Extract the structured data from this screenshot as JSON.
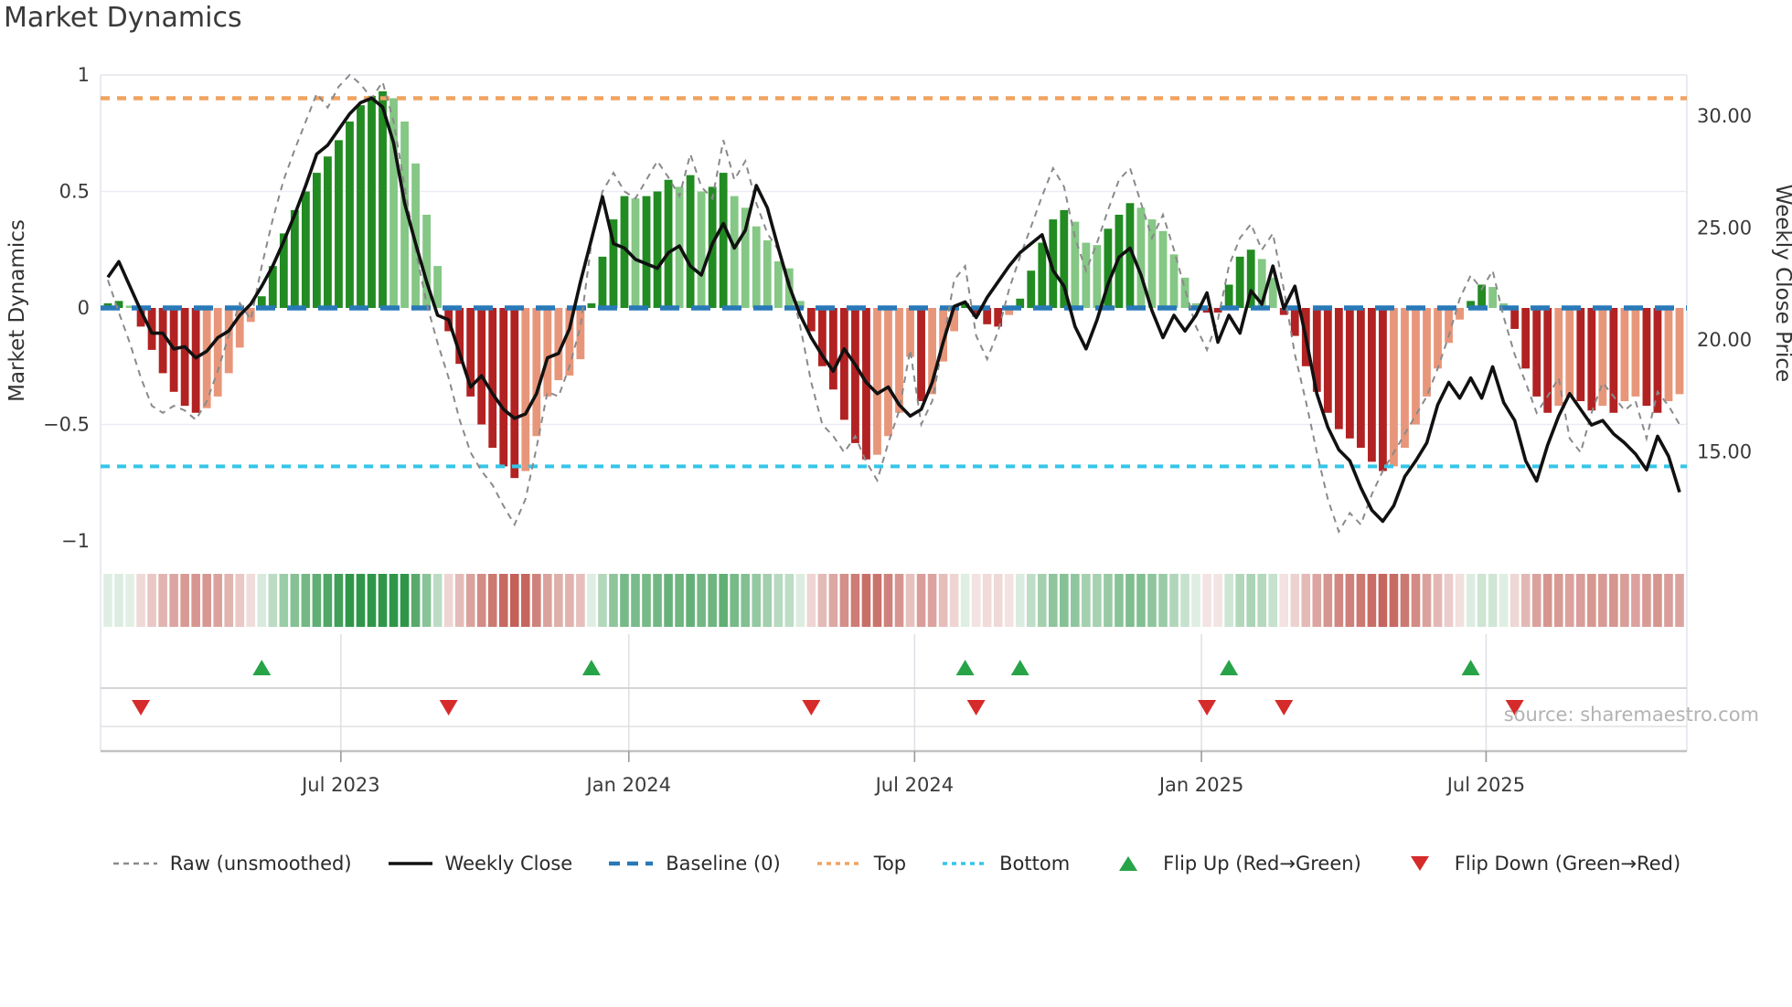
{
  "title": "Market Dynamics",
  "source": "source: sharemaestro.com",
  "axes": {
    "left_label": "Market Dynamics",
    "right_label": "Weekly Close Price",
    "left_ticks": [
      {
        "v": 1,
        "label": "1"
      },
      {
        "v": 0.5,
        "label": "0.5"
      },
      {
        "v": 0,
        "label": "0"
      },
      {
        "v": -0.5,
        "label": "−0.5"
      },
      {
        "v": -1,
        "label": "−1"
      }
    ],
    "right_ticks": [
      {
        "v": 30,
        "label": "30.00"
      },
      {
        "v": 25,
        "label": "25.00"
      },
      {
        "v": 20,
        "label": "20.00"
      },
      {
        "v": 15,
        "label": "15.00"
      }
    ],
    "x_ticks": [
      {
        "week": 21.2,
        "label": "Jul 2023"
      },
      {
        "week": 47.4,
        "label": "Jan 2024"
      },
      {
        "week": 73.4,
        "label": "Jul 2024"
      },
      {
        "week": 99.5,
        "label": "Jan 2025"
      },
      {
        "week": 125.4,
        "label": "Jul 2025"
      }
    ]
  },
  "legend": [
    {
      "label": "Raw (unsmoothed)",
      "type": "dash-gray"
    },
    {
      "label": "Weekly Close",
      "type": "solid-black"
    },
    {
      "label": "Baseline (0)",
      "type": "dash-blue"
    },
    {
      "label": "Top",
      "type": "dot-orange"
    },
    {
      "label": "Bottom",
      "type": "dot-cyan"
    },
    {
      "label": "Flip Up (Red→Green)",
      "type": "tri-up"
    },
    {
      "label": "Flip Down (Green→Red)",
      "type": "tri-down"
    }
  ],
  "chart_data": {
    "type": "bar",
    "subtype": "oscillator-with-price-overlay-and-heat-strip",
    "x_unit": "weeks (Feb 2023 – Nov 2025)",
    "n_weeks": 144,
    "left_axis_range": [
      -1,
      1
    ],
    "right_axis_range": [
      11,
      31.8
    ],
    "grid": "horizontal at ±0.5, vertical at half-year ticks in marker rows",
    "legend_position": "bottom-center",
    "threshold_top": {
      "label": "Top",
      "value": 0.9
    },
    "threshold_bottom": {
      "label": "Bottom",
      "value": -0.68
    },
    "baseline": {
      "label": "Baseline (0)",
      "value": 0
    },
    "series": [
      {
        "name": "Oscillator (bars)",
        "axis": "left",
        "values": [
          0.02,
          0.03,
          0.01,
          -0.08,
          -0.18,
          -0.28,
          -0.36,
          -0.42,
          -0.45,
          -0.43,
          -0.38,
          -0.28,
          -0.17,
          -0.06,
          0.05,
          0.18,
          0.32,
          0.42,
          0.5,
          0.58,
          0.65,
          0.72,
          0.8,
          0.87,
          0.91,
          0.93,
          0.9,
          0.8,
          0.62,
          0.4,
          0.18,
          -0.1,
          -0.24,
          -0.38,
          -0.5,
          -0.6,
          -0.68,
          -0.73,
          -0.7,
          -0.55,
          -0.38,
          -0.31,
          -0.29,
          -0.22,
          0.02,
          0.22,
          0.38,
          0.48,
          0.47,
          0.48,
          0.5,
          0.55,
          0.52,
          0.57,
          0.5,
          0.52,
          0.58,
          0.48,
          0.43,
          0.35,
          0.29,
          0.2,
          0.17,
          0.03,
          -0.1,
          -0.25,
          -0.35,
          -0.48,
          -0.58,
          -0.65,
          -0.63,
          -0.55,
          -0.45,
          -0.21,
          -0.4,
          -0.37,
          -0.23,
          -0.1,
          0.02,
          -0.03,
          -0.07,
          -0.08,
          -0.03,
          0.04,
          0.16,
          0.28,
          0.38,
          0.42,
          0.37,
          0.28,
          0.27,
          0.34,
          0.4,
          0.45,
          0.43,
          0.38,
          0.33,
          0.23,
          0.13,
          0.02,
          -0.02,
          -0.02,
          0.1,
          0.22,
          0.25,
          0.21,
          0.13,
          -0.03,
          -0.12,
          -0.25,
          -0.36,
          -0.45,
          -0.52,
          -0.56,
          -0.6,
          -0.66,
          -0.7,
          -0.68,
          -0.6,
          -0.5,
          -0.38,
          -0.26,
          -0.15,
          -0.05,
          0.03,
          0.1,
          0.09,
          0.02,
          -0.09,
          -0.26,
          -0.38,
          -0.45,
          -0.42,
          -0.38,
          -0.4,
          -0.44,
          -0.42,
          -0.45,
          -0.4,
          -0.38,
          -0.42,
          -0.45,
          -0.4,
          -0.37
        ]
      },
      {
        "name": "Raw (unsmoothed)",
        "axis": "left",
        "values": [
          0.12,
          -0.02,
          -0.15,
          -0.3,
          -0.42,
          -0.45,
          -0.42,
          -0.44,
          -0.48,
          -0.4,
          -0.27,
          -0.12,
          0.02,
          -0.05,
          0.18,
          0.38,
          0.55,
          0.68,
          0.8,
          0.92,
          0.86,
          0.95,
          1.0,
          0.96,
          0.9,
          0.97,
          0.8,
          0.52,
          0.25,
          0.02,
          -0.15,
          -0.3,
          -0.48,
          -0.62,
          -0.7,
          -0.76,
          -0.85,
          -0.93,
          -0.82,
          -0.6,
          -0.36,
          -0.38,
          -0.25,
          -0.08,
          0.28,
          0.5,
          0.58,
          0.5,
          0.47,
          0.55,
          0.63,
          0.56,
          0.48,
          0.66,
          0.52,
          0.47,
          0.72,
          0.55,
          0.63,
          0.45,
          0.32,
          0.25,
          0.12,
          -0.08,
          -0.32,
          -0.5,
          -0.55,
          -0.62,
          -0.55,
          -0.66,
          -0.74,
          -0.58,
          -0.44,
          -0.18,
          -0.5,
          -0.4,
          -0.15,
          0.12,
          0.18,
          -0.12,
          -0.22,
          -0.1,
          0.08,
          0.22,
          0.35,
          0.48,
          0.6,
          0.52,
          0.3,
          0.16,
          0.28,
          0.42,
          0.55,
          0.6,
          0.45,
          0.3,
          0.4,
          0.25,
          0.08,
          -0.08,
          -0.18,
          -0.05,
          0.18,
          0.3,
          0.36,
          0.25,
          0.32,
          0.08,
          -0.2,
          -0.4,
          -0.62,
          -0.82,
          -0.96,
          -0.88,
          -0.93,
          -0.8,
          -0.7,
          -0.62,
          -0.54,
          -0.46,
          -0.38,
          -0.26,
          -0.12,
          0.04,
          0.14,
          0.08,
          0.16,
          -0.04,
          -0.2,
          -0.32,
          -0.45,
          -0.38,
          -0.3,
          -0.56,
          -0.62,
          -0.45,
          -0.32,
          -0.38,
          -0.44,
          -0.4,
          -0.56,
          -0.36,
          -0.42,
          -0.5
        ]
      },
      {
        "name": "Weekly Close",
        "axis": "right",
        "values": [
          22.8,
          23.5,
          22.4,
          21.3,
          20.3,
          20.3,
          19.6,
          19.7,
          19.2,
          19.5,
          20.1,
          20.4,
          21.1,
          21.6,
          22.4,
          23.3,
          24.4,
          25.6,
          26.9,
          28.3,
          28.7,
          29.4,
          30.1,
          30.6,
          30.8,
          30.4,
          28.8,
          26.1,
          24.3,
          22.6,
          21.1,
          20.9,
          19.4,
          17.9,
          18.4,
          17.6,
          16.9,
          16.5,
          16.7,
          17.6,
          19.2,
          19.4,
          20.5,
          22.6,
          24.5,
          26.4,
          24.3,
          24.1,
          23.6,
          23.4,
          23.2,
          23.9,
          24.2,
          23.3,
          22.9,
          24.3,
          25.2,
          24.1,
          24.9,
          26.9,
          25.9,
          24.1,
          22.4,
          21.1,
          20.1,
          19.3,
          18.6,
          19.6,
          18.9,
          18.1,
          17.6,
          17.9,
          17.1,
          16.6,
          16.9,
          18.1,
          19.9,
          21.5,
          21.7,
          21.0,
          21.9,
          22.6,
          23.3,
          23.9,
          24.3,
          24.7,
          23.1,
          22.4,
          20.6,
          19.6,
          20.9,
          22.5,
          23.7,
          24.1,
          22.9,
          21.3,
          20.1,
          21.1,
          20.4,
          21.1,
          22.1,
          19.9,
          21.1,
          20.3,
          22.2,
          21.6,
          23.3,
          21.4,
          22.4,
          20.1,
          17.6,
          16.1,
          15.1,
          14.6,
          13.4,
          12.4,
          11.9,
          12.6,
          13.9,
          14.6,
          15.4,
          17.1,
          18.1,
          17.4,
          18.3,
          17.4,
          18.8,
          17.2,
          16.4,
          14.6,
          13.7,
          15.3,
          16.6,
          17.6,
          16.9,
          16.2,
          16.4,
          15.8,
          15.4,
          14.9,
          14.2,
          15.7,
          14.8,
          13.2
        ]
      }
    ],
    "heat_strip": "same weekly oscillator values rendered as red–green intensity columns",
    "flip_up_weeks": [
      14,
      44,
      78,
      83,
      102,
      124
    ],
    "flip_down_weeks": [
      3,
      31,
      64,
      79,
      100,
      107,
      128
    ],
    "colors": {
      "bar_up_strong": "#228b22",
      "bar_up_weak": "#85c785",
      "bar_down_strong": "#b22222",
      "bar_down_weak": "#e8967a",
      "baseline": "#2979b8",
      "top_line": "#f0a360",
      "bottom_line": "#35c6e8",
      "raw_line": "#8a8a8a",
      "price_line": "#111111",
      "flip_up": "#27a348",
      "flip_down": "#d62b2b",
      "heat_green": "#2f9649",
      "heat_red": "#be544b"
    }
  }
}
